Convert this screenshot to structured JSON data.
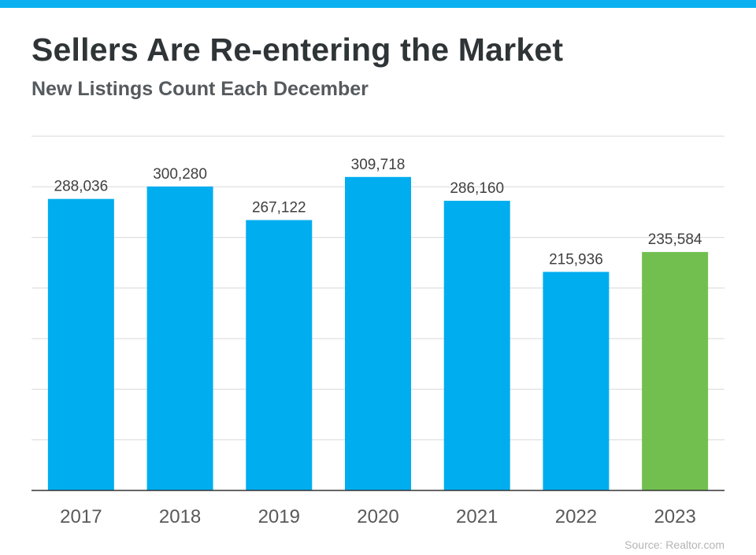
{
  "header": {
    "title": "Sellers Are Re-entering the Market",
    "subtitle": "New Listings Count Each December"
  },
  "footer": {
    "source": "Source: Realtor.com"
  },
  "colors": {
    "top_bar": "#0ab0f0",
    "bar_default": "#00adef",
    "bar_highlight": "#72bf4f",
    "gridline": "#d9d9d9",
    "axis": "#333333"
  },
  "chart_data": {
    "type": "bar",
    "title": "Sellers Are Re-entering the Market",
    "subtitle": "New Listings Count Each December",
    "categories": [
      "2017",
      "2018",
      "2019",
      "2020",
      "2021",
      "2022",
      "2023"
    ],
    "values": [
      288036,
      300280,
      267122,
      309718,
      286160,
      215936,
      235584
    ],
    "data_labels": [
      "288,036",
      "300,280",
      "267,122",
      "309,718",
      "286,160",
      "215,936",
      "235,584"
    ],
    "highlight_category": "2023",
    "ylim": [
      0,
      350000
    ],
    "grid": true,
    "legend": false
  }
}
